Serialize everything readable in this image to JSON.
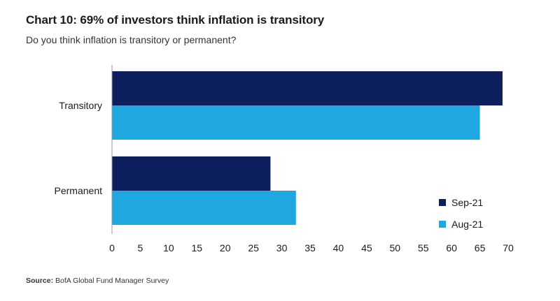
{
  "title": "Chart 10: 69% of investors think inflation is transitory",
  "subtitle": "Do you think inflation is transitory or permanent?",
  "source_label": "Source:",
  "source_text": "BofA Global Fund Manager Survey",
  "chart_data": {
    "type": "bar",
    "orientation": "horizontal",
    "categories": [
      "Transitory",
      "Permanent"
    ],
    "series": [
      {
        "name": "Sep-21",
        "color": "#0d1f5c",
        "values": [
          69,
          28
        ]
      },
      {
        "name": "Aug-21",
        "color": "#1ea7e0",
        "values": [
          65,
          32.5
        ]
      }
    ],
    "xlim": [
      0,
      70
    ],
    "xticks": [
      0,
      5,
      10,
      15,
      20,
      25,
      30,
      35,
      40,
      45,
      50,
      55,
      60,
      65,
      70
    ],
    "grid": false,
    "legend_position": "bottom-right"
  }
}
